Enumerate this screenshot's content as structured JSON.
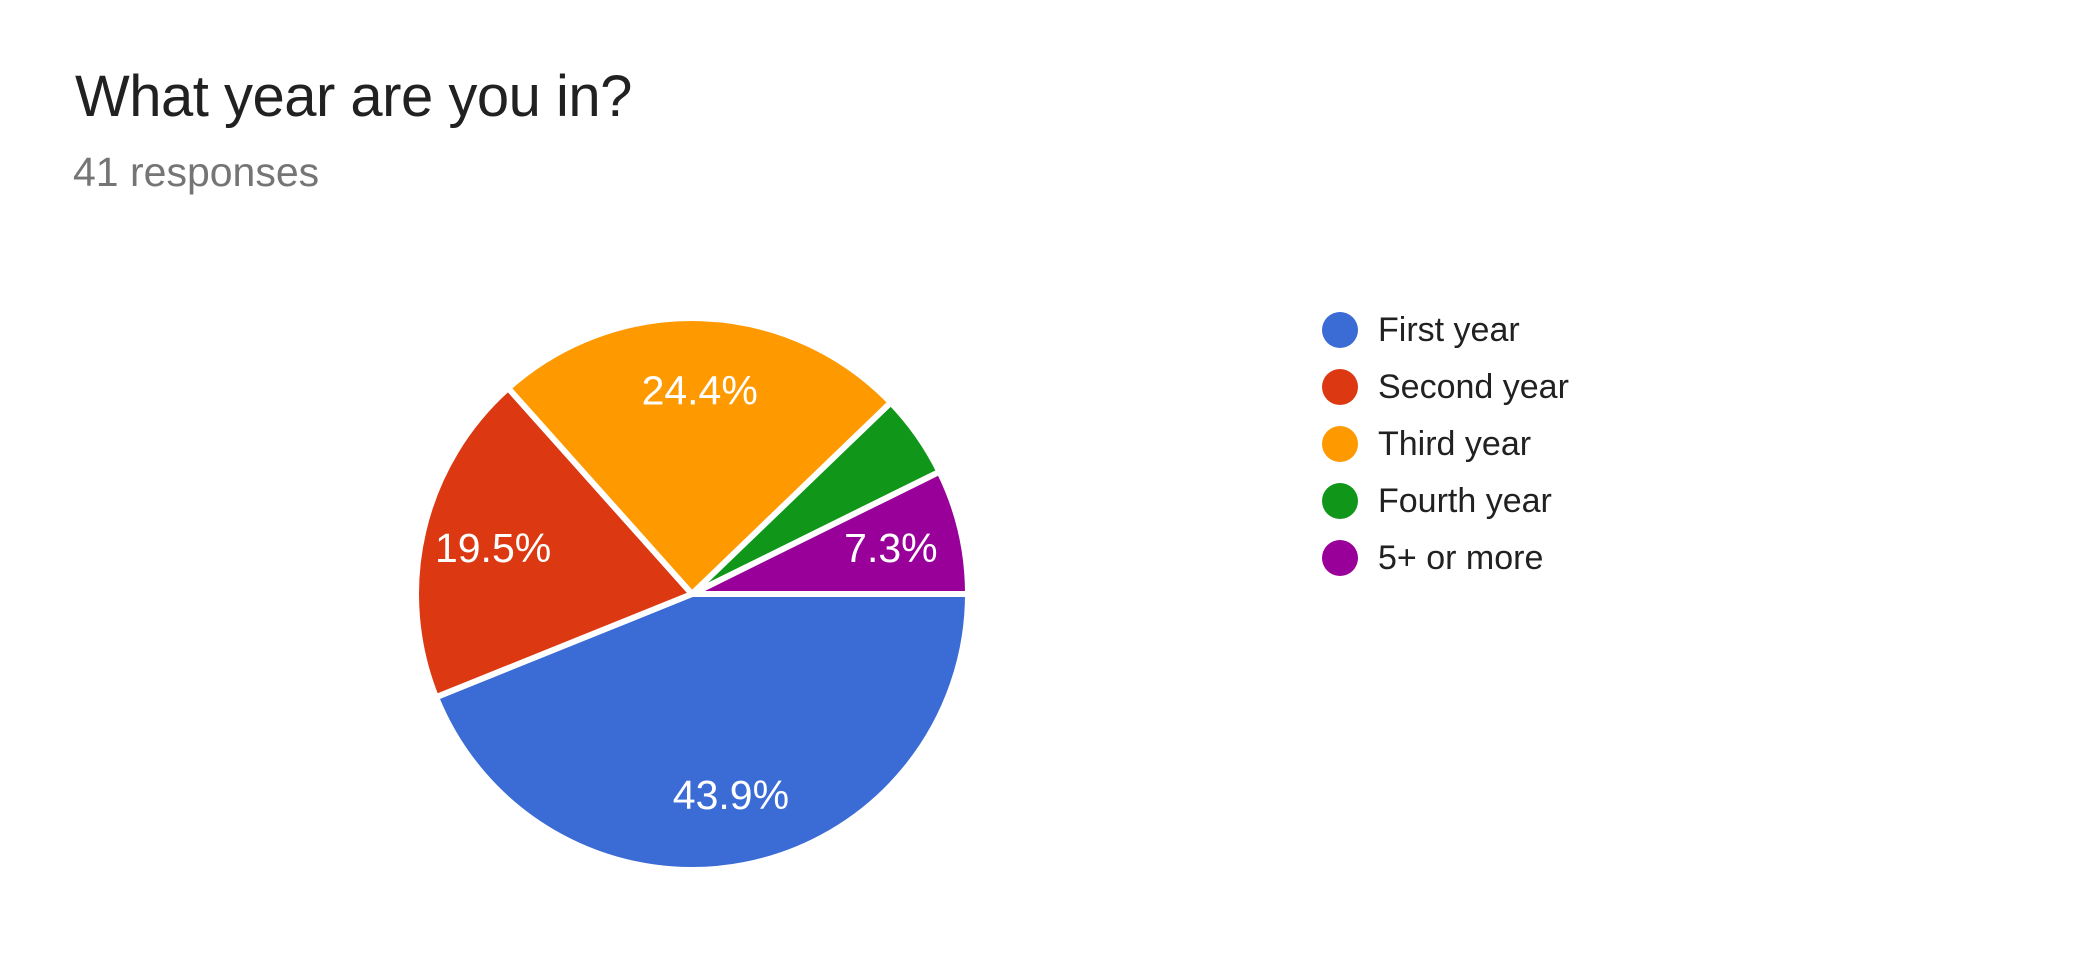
{
  "header": {
    "title": "What year are you in?",
    "responses_count": "41 responses"
  },
  "theme": {
    "background": "#ffffff",
    "title_color": "#212121",
    "subtitle_color": "#757575",
    "legend_text_color": "#212121",
    "slice_label_color": "#ffffff"
  },
  "chart_data": {
    "type": "pie",
    "title": "What year are you in?",
    "subtitle": "41 responses",
    "total_responses": 41,
    "unit": "percent",
    "start_angle_deg": 0,
    "direction": "clockwise",
    "legend_position": "right",
    "gridlines": false,
    "series": [
      {
        "label": "First year",
        "value": 43.9,
        "display": "43.9%",
        "color": "#3b6bd5"
      },
      {
        "label": "Second year",
        "value": 19.5,
        "display": "19.5%",
        "color": "#dc3912"
      },
      {
        "label": "Third year",
        "value": 24.4,
        "display": "24.4%",
        "color": "#ff9900"
      },
      {
        "label": "Fourth year",
        "value": 4.9,
        "display": "",
        "color": "#109618"
      },
      {
        "label": "5+ or more",
        "value": 7.3,
        "display": "7.3%",
        "color": "#990099"
      }
    ]
  }
}
